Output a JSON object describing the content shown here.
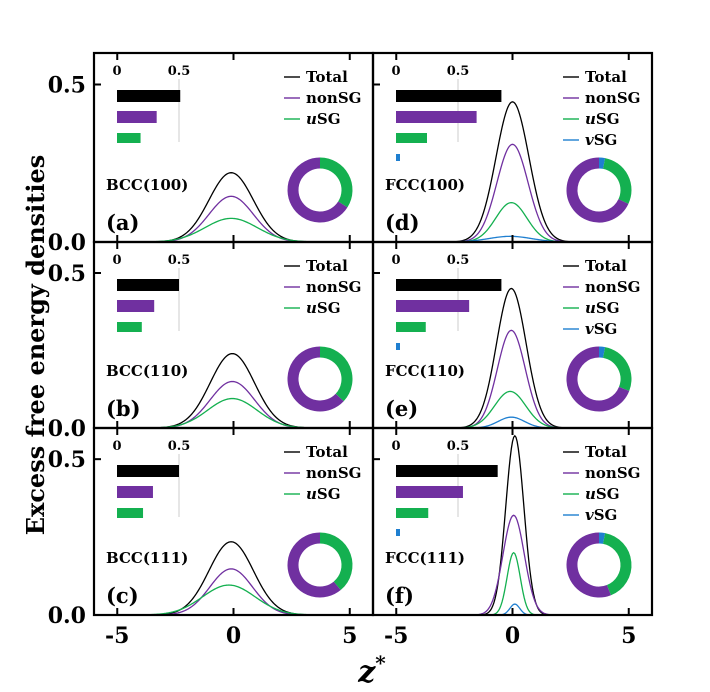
{
  "figure": {
    "ylabel": "Excess free energy densities",
    "xlabel": "z",
    "xlabel_sup": "*"
  },
  "colors": {
    "Total": "#000000",
    "nonSG": "#7030a0",
    "uSG": "#14b050",
    "vSG": "#1f7fd0"
  },
  "chart_data": [
    {
      "type": "line",
      "id": "a",
      "structure": "BCC(100)",
      "tag": "(a)",
      "xlim": [
        -6,
        6
      ],
      "ylim": [
        0,
        0.6
      ],
      "x_ticks": [
        "-5",
        "0",
        "5"
      ],
      "y_ticks": [
        "0.0",
        "0.5"
      ],
      "series": [
        {
          "name": "Total",
          "label": "Total",
          "prefix": "",
          "peak": 0.22,
          "center": -0.1,
          "width": 1.35
        },
        {
          "name": "nonSG",
          "label": "nonSG",
          "prefix": "",
          "peak": 0.145,
          "center": -0.1,
          "width": 1.35
        },
        {
          "name": "uSG",
          "label": "SG",
          "prefix": "u",
          "peak": 0.075,
          "center": -0.1,
          "width": 1.6
        }
      ],
      "bar_inset": {
        "axis_ticks": [
          "0",
          "0.5"
        ],
        "max": 0.5,
        "values": {
          "Total": 0.51,
          "nonSG": 0.32,
          "uSG": 0.19
        }
      },
      "donut": {
        "nonSG": 0.66,
        "uSG": 0.34,
        "vSG": 0
      }
    },
    {
      "type": "line",
      "id": "b",
      "structure": "BCC(110)",
      "tag": "(b)",
      "xlim": [
        -6,
        6
      ],
      "ylim": [
        0,
        0.6
      ],
      "x_ticks": [
        "-5",
        "0",
        "5"
      ],
      "y_ticks": [
        "0.0",
        "0.5"
      ],
      "series": [
        {
          "name": "Total",
          "label": "Total",
          "prefix": "",
          "peak": 0.24,
          "center": -0.05,
          "width": 1.35
        },
        {
          "name": "nonSG",
          "label": "nonSG",
          "prefix": "",
          "peak": 0.15,
          "center": -0.05,
          "width": 1.35
        },
        {
          "name": "uSG",
          "label": "SG",
          "prefix": "u",
          "peak": 0.095,
          "center": -0.05,
          "width": 1.5
        }
      ],
      "bar_inset": {
        "axis_ticks": [
          "0",
          "0.5"
        ],
        "max": 0.5,
        "values": {
          "Total": 0.5,
          "nonSG": 0.3,
          "uSG": 0.2
        }
      },
      "donut": {
        "nonSG": 0.63,
        "uSG": 0.37,
        "vSG": 0
      }
    },
    {
      "type": "line",
      "id": "c",
      "structure": "BCC(111)",
      "tag": "(c)",
      "xlim": [
        -6,
        6
      ],
      "ylim": [
        0,
        0.6
      ],
      "x_ticks": [
        "-5",
        "0",
        "5"
      ],
      "y_ticks": [
        "0.0",
        "0.5"
      ],
      "series": [
        {
          "name": "Total",
          "label": "Total",
          "prefix": "",
          "peak": 0.235,
          "center": -0.1,
          "width": 1.35
        },
        {
          "name": "nonSG",
          "label": "nonSG",
          "prefix": "",
          "peak": 0.148,
          "center": -0.1,
          "width": 1.3
        },
        {
          "name": "uSG",
          "label": "SG",
          "prefix": "u",
          "peak": 0.096,
          "center": -0.2,
          "width": 1.6
        }
      ],
      "bar_inset": {
        "axis_ticks": [
          "0",
          "0.5"
        ],
        "max": 0.5,
        "values": {
          "Total": 0.5,
          "nonSG": 0.29,
          "uSG": 0.21
        }
      },
      "donut": {
        "nonSG": 0.61,
        "uSG": 0.39,
        "vSG": 0
      }
    },
    {
      "type": "line",
      "id": "d",
      "structure": "FCC(100)",
      "tag": "(d)",
      "xlim": [
        -6,
        6
      ],
      "ylim": [
        0,
        0.6
      ],
      "x_ticks": [
        "-5",
        "0",
        "5"
      ],
      "y_ticks": [
        "0.0",
        "0.5"
      ],
      "series": [
        {
          "name": "Total",
          "label": "Total",
          "prefix": "",
          "peak": 0.445,
          "center": 0.0,
          "width": 1.0
        },
        {
          "name": "nonSG",
          "label": "nonSG",
          "prefix": "",
          "peak": 0.31,
          "center": 0.0,
          "width": 0.95
        },
        {
          "name": "uSG",
          "label": "SG",
          "prefix": "u",
          "peak": 0.125,
          "center": -0.05,
          "width": 0.95
        },
        {
          "name": "vSG",
          "label": "SG",
          "prefix": "v",
          "peak": 0.018,
          "center": -0.1,
          "width": 1.3
        }
      ],
      "bar_inset": {
        "axis_ticks": [
          "0",
          "0.5"
        ],
        "max": 0.5,
        "values": {
          "Total": 0.85,
          "nonSG": 0.65,
          "uSG": 0.25,
          "vSG": 0.02
        }
      },
      "donut": {
        "nonSG": 0.68,
        "uSG": 0.29,
        "vSG": 0.03
      }
    },
    {
      "type": "line",
      "id": "e",
      "structure": "FCC(110)",
      "tag": "(e)",
      "xlim": [
        -6,
        6
      ],
      "ylim": [
        0,
        0.6
      ],
      "x_ticks": [
        "-5",
        "0",
        "5"
      ],
      "y_ticks": [
        "0.0",
        "0.5"
      ],
      "series": [
        {
          "name": "Total",
          "label": "Total",
          "prefix": "",
          "peak": 0.45,
          "center": -0.05,
          "width": 0.9
        },
        {
          "name": "nonSG",
          "label": "nonSG",
          "prefix": "",
          "peak": 0.315,
          "center": -0.05,
          "width": 0.85
        },
        {
          "name": "uSG",
          "label": "SG",
          "prefix": "u",
          "peak": 0.118,
          "center": -0.1,
          "width": 0.95
        },
        {
          "name": "vSG",
          "label": "SG",
          "prefix": "v",
          "peak": 0.035,
          "center": -0.05,
          "width": 0.8
        }
      ],
      "bar_inset": {
        "axis_ticks": [
          "0",
          "0.5"
        ],
        "max": 0.5,
        "values": {
          "Total": 0.85,
          "nonSG": 0.59,
          "uSG": 0.24,
          "vSG": 0.02
        }
      },
      "donut": {
        "nonSG": 0.69,
        "uSG": 0.28,
        "vSG": 0.03
      }
    },
    {
      "type": "line",
      "id": "f",
      "structure": "FCC(111)",
      "tag": "(f)",
      "xlim": [
        -6,
        6
      ],
      "ylim": [
        0,
        0.6
      ],
      "x_ticks": [
        "-5",
        "0",
        "5"
      ],
      "y_ticks": [
        "0.0",
        "0.5"
      ],
      "series": [
        {
          "name": "Total",
          "label": "Total",
          "prefix": "",
          "peak": 0.575,
          "center": 0.1,
          "width": 0.55
        },
        {
          "name": "nonSG",
          "label": "nonSG",
          "prefix": "",
          "peak": 0.32,
          "center": 0.05,
          "width": 0.65
        },
        {
          "name": "uSG",
          "label": "SG",
          "prefix": "u",
          "peak": 0.2,
          "center": 0.05,
          "width": 0.4
        },
        {
          "name": "vSG",
          "label": "SG",
          "prefix": "v",
          "peak": 0.035,
          "center": 0.1,
          "width": 0.3
        }
      ],
      "bar_inset": {
        "axis_ticks": [
          "0",
          "0.5"
        ],
        "max": 0.5,
        "values": {
          "Total": 0.82,
          "nonSG": 0.54,
          "uSG": 0.26,
          "vSG": 0.02
        }
      },
      "donut": {
        "nonSG": 0.56,
        "uSG": 0.41,
        "vSG": 0.03
      }
    }
  ]
}
